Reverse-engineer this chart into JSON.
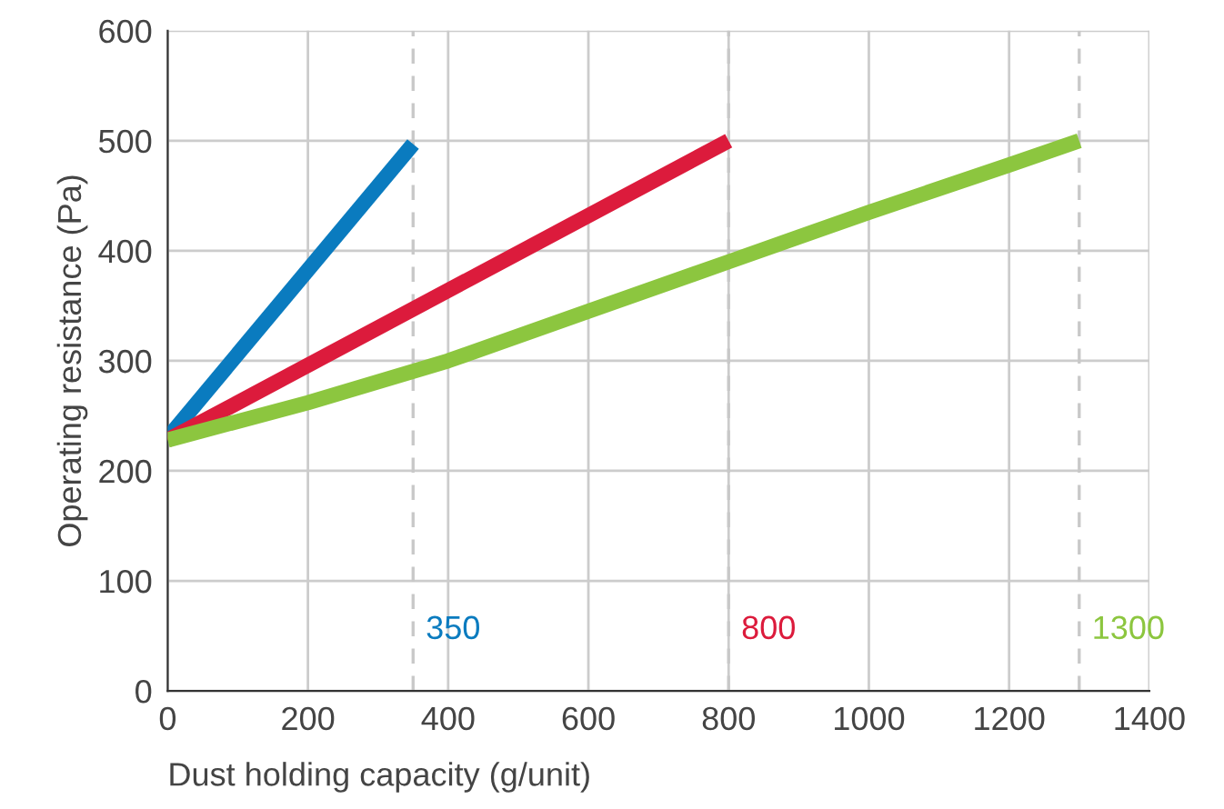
{
  "chart_data": {
    "type": "line",
    "xlabel": "Dust holding capacity (g/unit)",
    "ylabel": "Operating resistance (Pa)",
    "xlim": [
      0,
      1400
    ],
    "xticks": [
      0,
      200,
      400,
      600,
      800,
      1000,
      1200,
      1400
    ],
    "ylim": [
      0,
      600
    ],
    "yticks": [
      0,
      100,
      200,
      300,
      400,
      500,
      600
    ],
    "grid": true,
    "line_style": "solid",
    "marker": "none",
    "series": [
      {
        "color": "#0a7bbf",
        "x": [
          0,
          350
        ],
        "values": [
          230,
          497
        ]
      },
      {
        "color": "#dc1b3c",
        "x": [
          0,
          800
        ],
        "values": [
          228,
          500
        ]
      },
      {
        "color": "#8cc63f",
        "x": [
          0,
          200,
          400,
          600,
          800,
          1000,
          1200,
          1300
        ],
        "values": [
          228,
          262,
          300,
          345,
          390,
          435,
          478,
          500
        ]
      }
    ],
    "ref_lines": [
      {
        "axis": "x",
        "value": 350,
        "label": "350",
        "color": "#c8c8c8",
        "line_style": "dashed"
      },
      {
        "axis": "x",
        "value": 800,
        "label": "800",
        "color": "#c8c8c8",
        "line_style": "dashed"
      },
      {
        "axis": "x",
        "value": 1300,
        "label": "1300",
        "color": "#c8c8c8",
        "line_style": "dashed"
      }
    ]
  }
}
